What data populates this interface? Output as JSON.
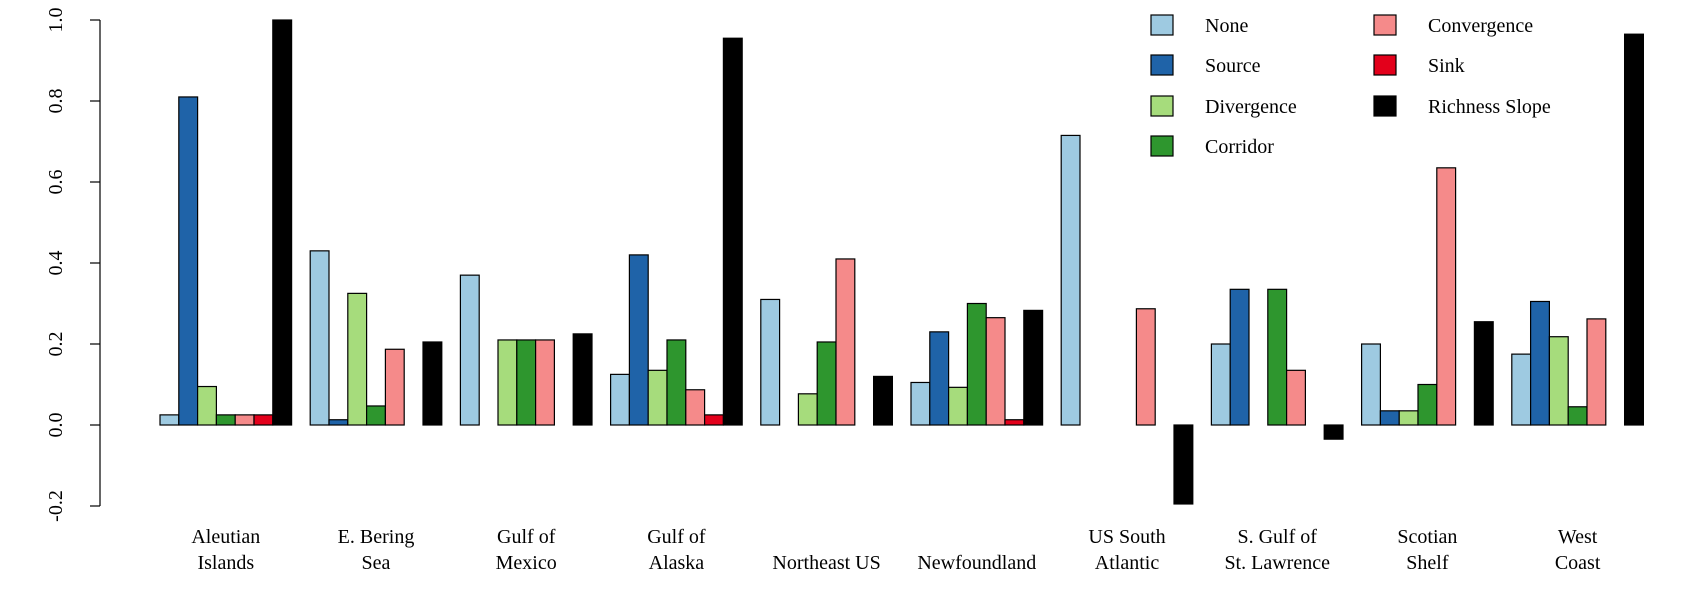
{
  "chart_data": {
    "type": "bar",
    "categories": [
      [
        "Aleutian",
        "Islands"
      ],
      [
        "E. Bering",
        "Sea"
      ],
      [
        "Gulf of",
        "Mexico"
      ],
      [
        "Gulf of",
        "Alaska"
      ],
      [
        "",
        "Northeast US"
      ],
      [
        "",
        "Newfoundland"
      ],
      [
        "US South",
        "Atlantic"
      ],
      [
        "S. Gulf of",
        "St. Lawrence"
      ],
      [
        "Scotian",
        "Shelf"
      ],
      [
        "West",
        "Coast"
      ]
    ],
    "series": [
      {
        "name": "None",
        "color": "#9ecae1",
        "values": [
          0.025,
          0.43,
          0.37,
          0.125,
          0.31,
          0.105,
          0.715,
          0.2,
          0.2,
          0.175
        ]
      },
      {
        "name": "Source",
        "color": "#1f63a8",
        "values": [
          0.81,
          0.013,
          0.0,
          0.42,
          0.0,
          0.23,
          0.0,
          0.335,
          0.035,
          0.305
        ]
      },
      {
        "name": "Divergence",
        "color": "#a6dc7c",
        "values": [
          0.095,
          0.325,
          0.21,
          0.135,
          0.077,
          0.093,
          0.0,
          0.0,
          0.035,
          0.218
        ]
      },
      {
        "name": "Corridor",
        "color": "#2e962e",
        "values": [
          0.025,
          0.047,
          0.21,
          0.21,
          0.205,
          0.3,
          0.0,
          0.335,
          0.1,
          0.045
        ]
      },
      {
        "name": "Convergence",
        "color": "#f58a8a",
        "values": [
          0.025,
          0.187,
          0.21,
          0.087,
          0.41,
          0.265,
          0.287,
          0.135,
          0.635,
          0.262
        ]
      },
      {
        "name": "Sink",
        "color": "#e3001b",
        "values": [
          0.025,
          0.0,
          0.0,
          0.025,
          0.0,
          0.013,
          0.0,
          0.0,
          0.0,
          0.0
        ]
      },
      {
        "name": "Richness Slope",
        "color": "#000000",
        "values": [
          1.0,
          0.205,
          0.225,
          0.955,
          0.12,
          0.283,
          -0.195,
          -0.035,
          0.255,
          0.965
        ]
      }
    ],
    "yticks": [
      "-0.2",
      "0.0",
      "0.2",
      "0.4",
      "0.6",
      "0.8",
      "1.0"
    ],
    "ylim": [
      -0.2,
      1.0
    ],
    "legend": "top-right, two columns",
    "grid": false
  }
}
